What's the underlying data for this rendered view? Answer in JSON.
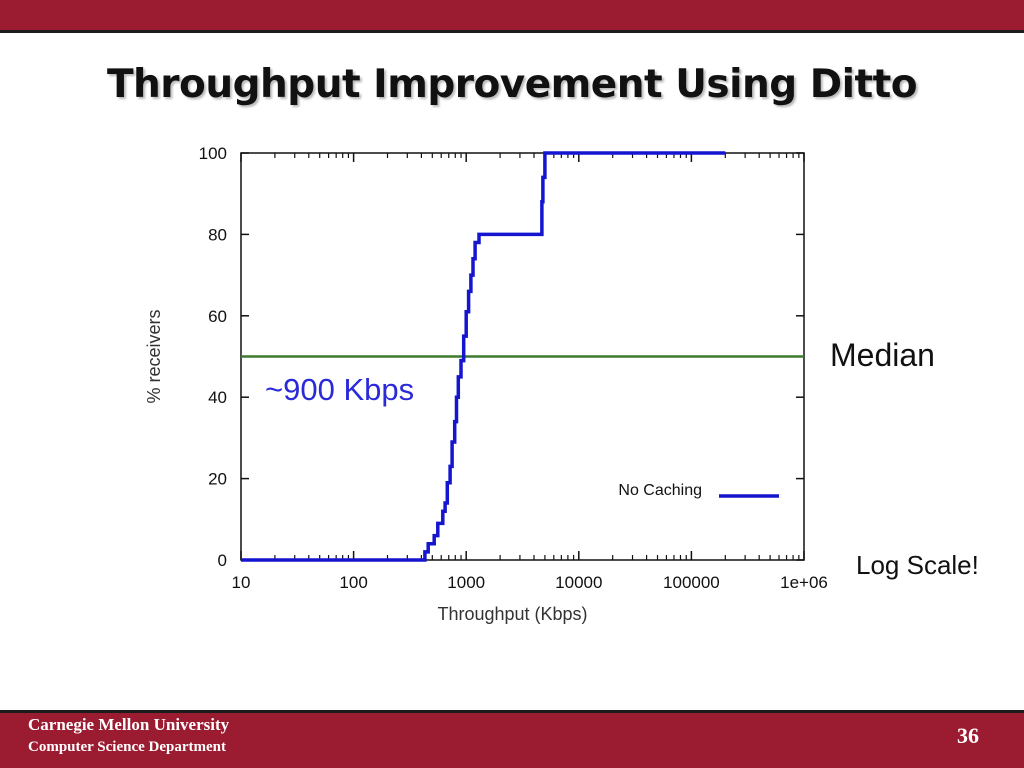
{
  "slide": {
    "title": "Throughput Improvement Using Ditto",
    "footer_line1": "Carnegie Mellon University",
    "footer_line2": "Computer Science Department",
    "page_number": "36"
  },
  "annotations": {
    "median_label": "Median",
    "median_value_label": "~900 Kbps",
    "log_scale_note": "Log Scale!"
  },
  "colors": {
    "brand": "#9b1c31",
    "series": "#1515d0",
    "median_line": "#3a7a2a",
    "annotation_text": "#2a2ad8"
  },
  "chart_data": {
    "type": "line",
    "xlabel": "Throughput (Kbps)",
    "ylabel": "% receivers",
    "xscale": "log",
    "xlim": [
      10,
      1000000
    ],
    "ylim": [
      0,
      100
    ],
    "xticks": [
      10,
      100,
      1000,
      10000,
      100000,
      1000000
    ],
    "xtick_labels": [
      "10",
      "100",
      "1000",
      "10000",
      "100000",
      "1e+06"
    ],
    "yticks": [
      0,
      20,
      40,
      60,
      80,
      100
    ],
    "ytick_labels": [
      "0",
      "20",
      "40",
      "60",
      "80",
      "100"
    ],
    "legend_position": "bottom-right",
    "grid": false,
    "reference_lines": [
      {
        "orientation": "horizontal",
        "y": 50
      }
    ],
    "series": [
      {
        "name": "No Caching",
        "step": true,
        "x": [
          10,
          430,
          460,
          520,
          560,
          620,
          650,
          680,
          720,
          750,
          790,
          820,
          850,
          900,
          950,
          1000,
          1050,
          1100,
          1150,
          1200,
          1300,
          4700,
          4800,
          5000,
          200000
        ],
        "y": [
          0,
          2,
          4,
          6,
          9,
          12,
          14,
          19,
          23,
          29,
          34,
          40,
          45,
          49,
          55,
          61,
          66,
          70,
          74,
          78,
          80,
          88,
          94,
          100,
          100
        ]
      }
    ]
  }
}
